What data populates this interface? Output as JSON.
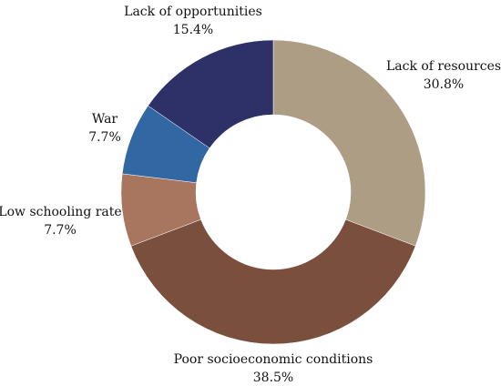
{
  "chart_data": {
    "type": "pie",
    "donut": true,
    "start_angle_deg": 0,
    "direction": "clockwise",
    "slices": [
      {
        "label": "Lack of resources",
        "value": 30.8,
        "value_label": "30.8%",
        "color": "#AC9D84"
      },
      {
        "label": "Poor socioeconomic conditions",
        "value": 38.5,
        "value_label": "38.5%",
        "color": "#7A4F3D"
      },
      {
        "label": "Low schooling rate",
        "value": 7.7,
        "value_label": "7.7%",
        "color": "#A8755F"
      },
      {
        "label": "War",
        "value": 7.7,
        "value_label": "7.7%",
        "color": "#3168A3"
      },
      {
        "label": "Lack of opportunities",
        "value": 15.4,
        "value_label": "15.4%",
        "color": "#2D3168"
      }
    ]
  }
}
